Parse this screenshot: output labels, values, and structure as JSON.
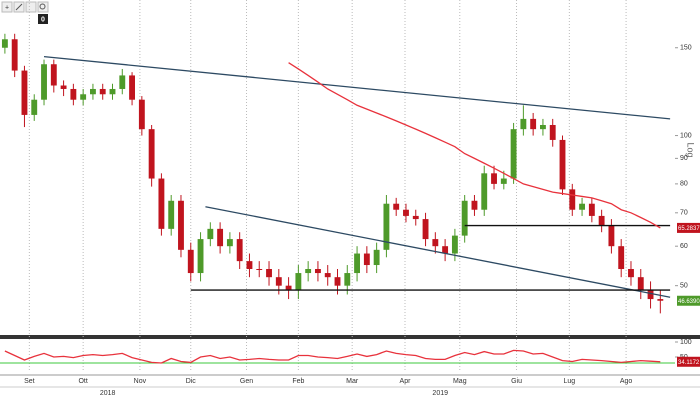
{
  "chart_data": {
    "type": "candlestick",
    "log_scale": true,
    "axis_scale_label": "Log",
    "toolbar_badge": "0",
    "up_color": "#4e9a2a",
    "down_color": "#c0141e",
    "ylim": [
      40,
      187
    ],
    "yticks": [
      50,
      60,
      70,
      80,
      90,
      100,
      150
    ],
    "xlim": [
      -0.5,
      68.5
    ],
    "xticks": [
      {
        "value": 2.5,
        "label": "Set"
      },
      {
        "value": 8,
        "label": "Ott"
      },
      {
        "value": 13.8,
        "label": "Nov"
      },
      {
        "value": 19,
        "label": "Dic"
      },
      {
        "value": 24.7,
        "label": "Gen"
      },
      {
        "value": 30,
        "label": "Feb"
      },
      {
        "value": 35.5,
        "label": "Mar"
      },
      {
        "value": 40.9,
        "label": "Apr"
      },
      {
        "value": 46.5,
        "label": "Mag"
      },
      {
        "value": 52.3,
        "label": "Giu"
      },
      {
        "value": 57.7,
        "label": "Lug"
      },
      {
        "value": 63.5,
        "label": "Ago"
      }
    ],
    "years": [
      {
        "value": 10.5,
        "label": "2018"
      },
      {
        "value": 44.5,
        "label": "2019"
      }
    ],
    "open": [
      150,
      156,
      135,
      110,
      118,
      139,
      126,
      124,
      118,
      121,
      124,
      121,
      124,
      132,
      118,
      103,
      82,
      65,
      74,
      59,
      53,
      62,
      65,
      60,
      62,
      56,
      54,
      54,
      52,
      50,
      49,
      53,
      54,
      53,
      52,
      50,
      53,
      58,
      55,
      59,
      73,
      71,
      69,
      68,
      62,
      60,
      58,
      63,
      74,
      71,
      84,
      80,
      82,
      103,
      108,
      103,
      105,
      98,
      78,
      71,
      73,
      69,
      66,
      60,
      54,
      52,
      49,
      47
    ],
    "high": [
      160,
      160,
      138,
      121,
      142,
      142,
      129,
      127,
      124,
      127,
      127,
      127,
      136,
      134,
      120,
      105,
      84,
      76,
      76,
      61,
      64,
      67,
      67,
      64,
      64,
      58,
      56,
      56,
      54,
      52,
      55,
      56,
      56,
      55,
      54,
      55,
      60,
      60,
      61,
      76,
      75,
      73,
      71,
      70,
      64,
      62,
      65,
      76,
      76,
      87,
      87,
      85,
      106,
      115,
      111,
      108,
      108,
      100,
      80,
      75,
      75,
      71,
      68,
      62,
      56,
      54,
      51,
      49
    ],
    "low": [
      146,
      131,
      104,
      107,
      115,
      122,
      120,
      115,
      115,
      118,
      118,
      118,
      121,
      115,
      100,
      79,
      63,
      63,
      57,
      51,
      51,
      60,
      58,
      58,
      54,
      52,
      52,
      50,
      48,
      47,
      47,
      51,
      51,
      50,
      48,
      48,
      51,
      53,
      53,
      57,
      69,
      67,
      66,
      60,
      58,
      56,
      56,
      61,
      69,
      69,
      78,
      78,
      80,
      100,
      100,
      100,
      95,
      76,
      69,
      69,
      67,
      64,
      58,
      52,
      50,
      47,
      45,
      44
    ],
    "close": [
      156,
      135,
      110,
      118,
      139,
      126,
      124,
      118,
      121,
      124,
      121,
      124,
      132,
      118,
      103,
      82,
      65,
      74,
      59,
      53,
      62,
      65,
      60,
      62,
      56,
      54,
      54,
      52,
      50,
      49,
      53,
      54,
      53,
      52,
      50,
      53,
      58,
      55,
      59,
      73,
      71,
      69,
      68,
      62,
      60,
      58,
      63,
      74,
      71,
      84,
      80,
      82,
      103,
      108,
      103,
      105,
      98,
      78,
      71,
      73,
      69,
      66,
      60,
      54,
      52,
      49,
      47,
      46.639
    ],
    "last_price_label": "46.6390",
    "moving_average": {
      "color": "#e8323c",
      "values": [
        null,
        null,
        null,
        null,
        null,
        null,
        null,
        null,
        null,
        null,
        null,
        null,
        null,
        null,
        null,
        null,
        null,
        null,
        null,
        null,
        null,
        null,
        null,
        null,
        null,
        null,
        null,
        null,
        null,
        140,
        136,
        132,
        128,
        124,
        121,
        118,
        115,
        113,
        111,
        109,
        107,
        105,
        103,
        101,
        99,
        97,
        95,
        92,
        90,
        88,
        86,
        84,
        82,
        80,
        79,
        78,
        77,
        76.5,
        76,
        75.5,
        75,
        74,
        73,
        71,
        70,
        68.5,
        67,
        65.2837
      ]
    },
    "trendlines": [
      {
        "color": "#2d4a63",
        "x": [
          4,
          68
        ],
        "values": [
          144,
          108
        ]
      },
      {
        "color": "#2d4a63",
        "x": [
          20.5,
          68
        ],
        "values": [
          72,
          47.4
        ]
      },
      {
        "color": "#111111",
        "x": [
          19,
          68
        ],
        "values": [
          49,
          49
        ]
      },
      {
        "color": "#111111",
        "x": [
          47,
          68
        ],
        "values": [
          66,
          66
        ]
      }
    ],
    "oscillator": {
      "color": "#e8323c",
      "level": 30,
      "level_color": "#3cc83c",
      "ylim": [
        0,
        100
      ],
      "yticks": [
        50,
        100
      ],
      "values": [
        70,
        55,
        40,
        52,
        62,
        50,
        52,
        48,
        55,
        58,
        55,
        58,
        62,
        48,
        40,
        32,
        30,
        45,
        35,
        32,
        50,
        55,
        45,
        50,
        40,
        42,
        45,
        42,
        40,
        40,
        55,
        55,
        50,
        48,
        45,
        52,
        60,
        52,
        58,
        70,
        62,
        58,
        55,
        45,
        42,
        42,
        55,
        65,
        58,
        68,
        60,
        60,
        72,
        70,
        60,
        62,
        50,
        38,
        35,
        42,
        40,
        38,
        35,
        32,
        35,
        38,
        36,
        34.1172
      ]
    }
  }
}
